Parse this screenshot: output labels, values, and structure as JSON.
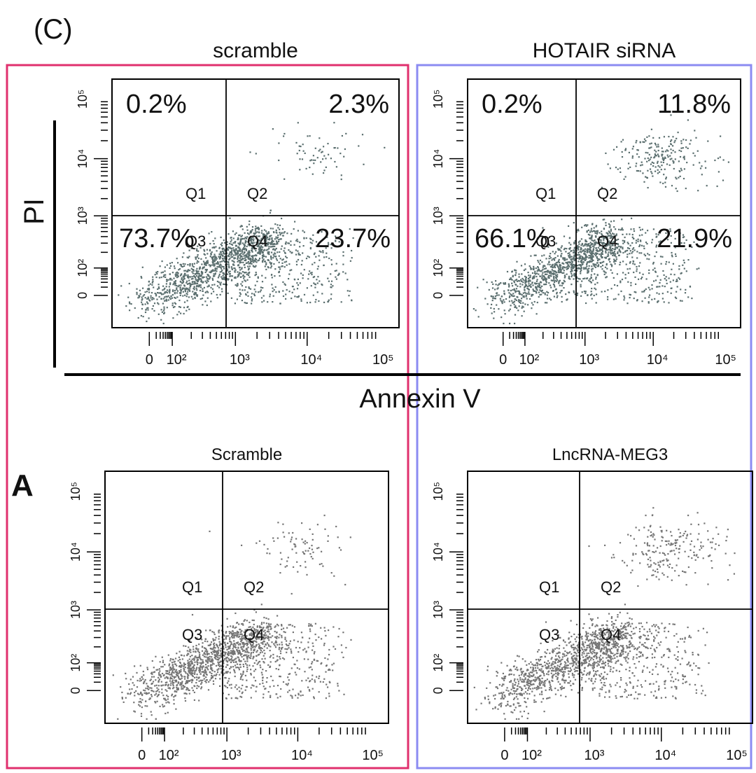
{
  "figure": {
    "panel_label_c": "(C)",
    "panel_label_a": "A",
    "ylabel": "PI",
    "xlabel": "Annexin V"
  },
  "colors": {
    "left_frame": "#e0306e",
    "right_frame": "#8b8bf2",
    "points_top": "#5b6f6f",
    "points_bottom": "#757575"
  },
  "chart_data": [
    {
      "type": "scatter",
      "title": "scramble",
      "xlabel": "Annexin V",
      "ylabel": "PI",
      "x_ticks": [
        "0",
        "10²",
        "10³",
        "10⁴",
        "10⁵"
      ],
      "y_ticks": [
        "0",
        "10²",
        "10³",
        "10⁴",
        "10⁵"
      ],
      "log_scale": true,
      "quadrant_gates": {
        "x": "≈10³",
        "y": "10³"
      },
      "quadrants": [
        {
          "name": "Q1",
          "percent": "0.2%"
        },
        {
          "name": "Q2",
          "percent": "2.3%"
        },
        {
          "name": "Q3",
          "percent": "73.7%"
        },
        {
          "name": "Q4",
          "percent": "23.7%"
        }
      ]
    },
    {
      "type": "scatter",
      "title": "HOTAIR siRNA",
      "xlabel": "Annexin V",
      "ylabel": "PI",
      "x_ticks": [
        "0",
        "10²",
        "10³",
        "10⁴",
        "10⁵"
      ],
      "y_ticks": [
        "0",
        "10²",
        "10³",
        "10⁴",
        "10⁵"
      ],
      "log_scale": true,
      "quadrant_gates": {
        "x": "≈10³",
        "y": "10³"
      },
      "quadrants": [
        {
          "name": "Q1",
          "percent": "0.2%"
        },
        {
          "name": "Q2",
          "percent": "11.8%"
        },
        {
          "name": "Q3",
          "percent": "66.1%"
        },
        {
          "name": "Q4",
          "percent": "21.9%"
        }
      ]
    },
    {
      "type": "scatter",
      "title": "Scramble",
      "x_ticks": [
        "0",
        "10²",
        "10³",
        "10⁴",
        "10⁵"
      ],
      "y_ticks": [
        "0",
        "10²",
        "10³",
        "10⁴",
        "10⁵"
      ],
      "log_scale": true,
      "quadrant_gates": {
        "x": "≈10³",
        "y": "10³"
      },
      "quadrants": [
        {
          "name": "Q1"
        },
        {
          "name": "Q2"
        },
        {
          "name": "Q3"
        },
        {
          "name": "Q4"
        }
      ]
    },
    {
      "type": "scatter",
      "title": "LncRNA-MEG3",
      "x_ticks": [
        "0",
        "10²",
        "10³",
        "10⁴",
        "10⁵"
      ],
      "y_ticks": [
        "0",
        "10²",
        "10³",
        "10⁴",
        "10⁵"
      ],
      "log_scale": true,
      "quadrant_gates": {
        "x": "≈10³",
        "y": "10³"
      },
      "quadrants": [
        {
          "name": "Q1"
        },
        {
          "name": "Q2"
        },
        {
          "name": "Q3"
        },
        {
          "name": "Q4"
        }
      ]
    }
  ]
}
